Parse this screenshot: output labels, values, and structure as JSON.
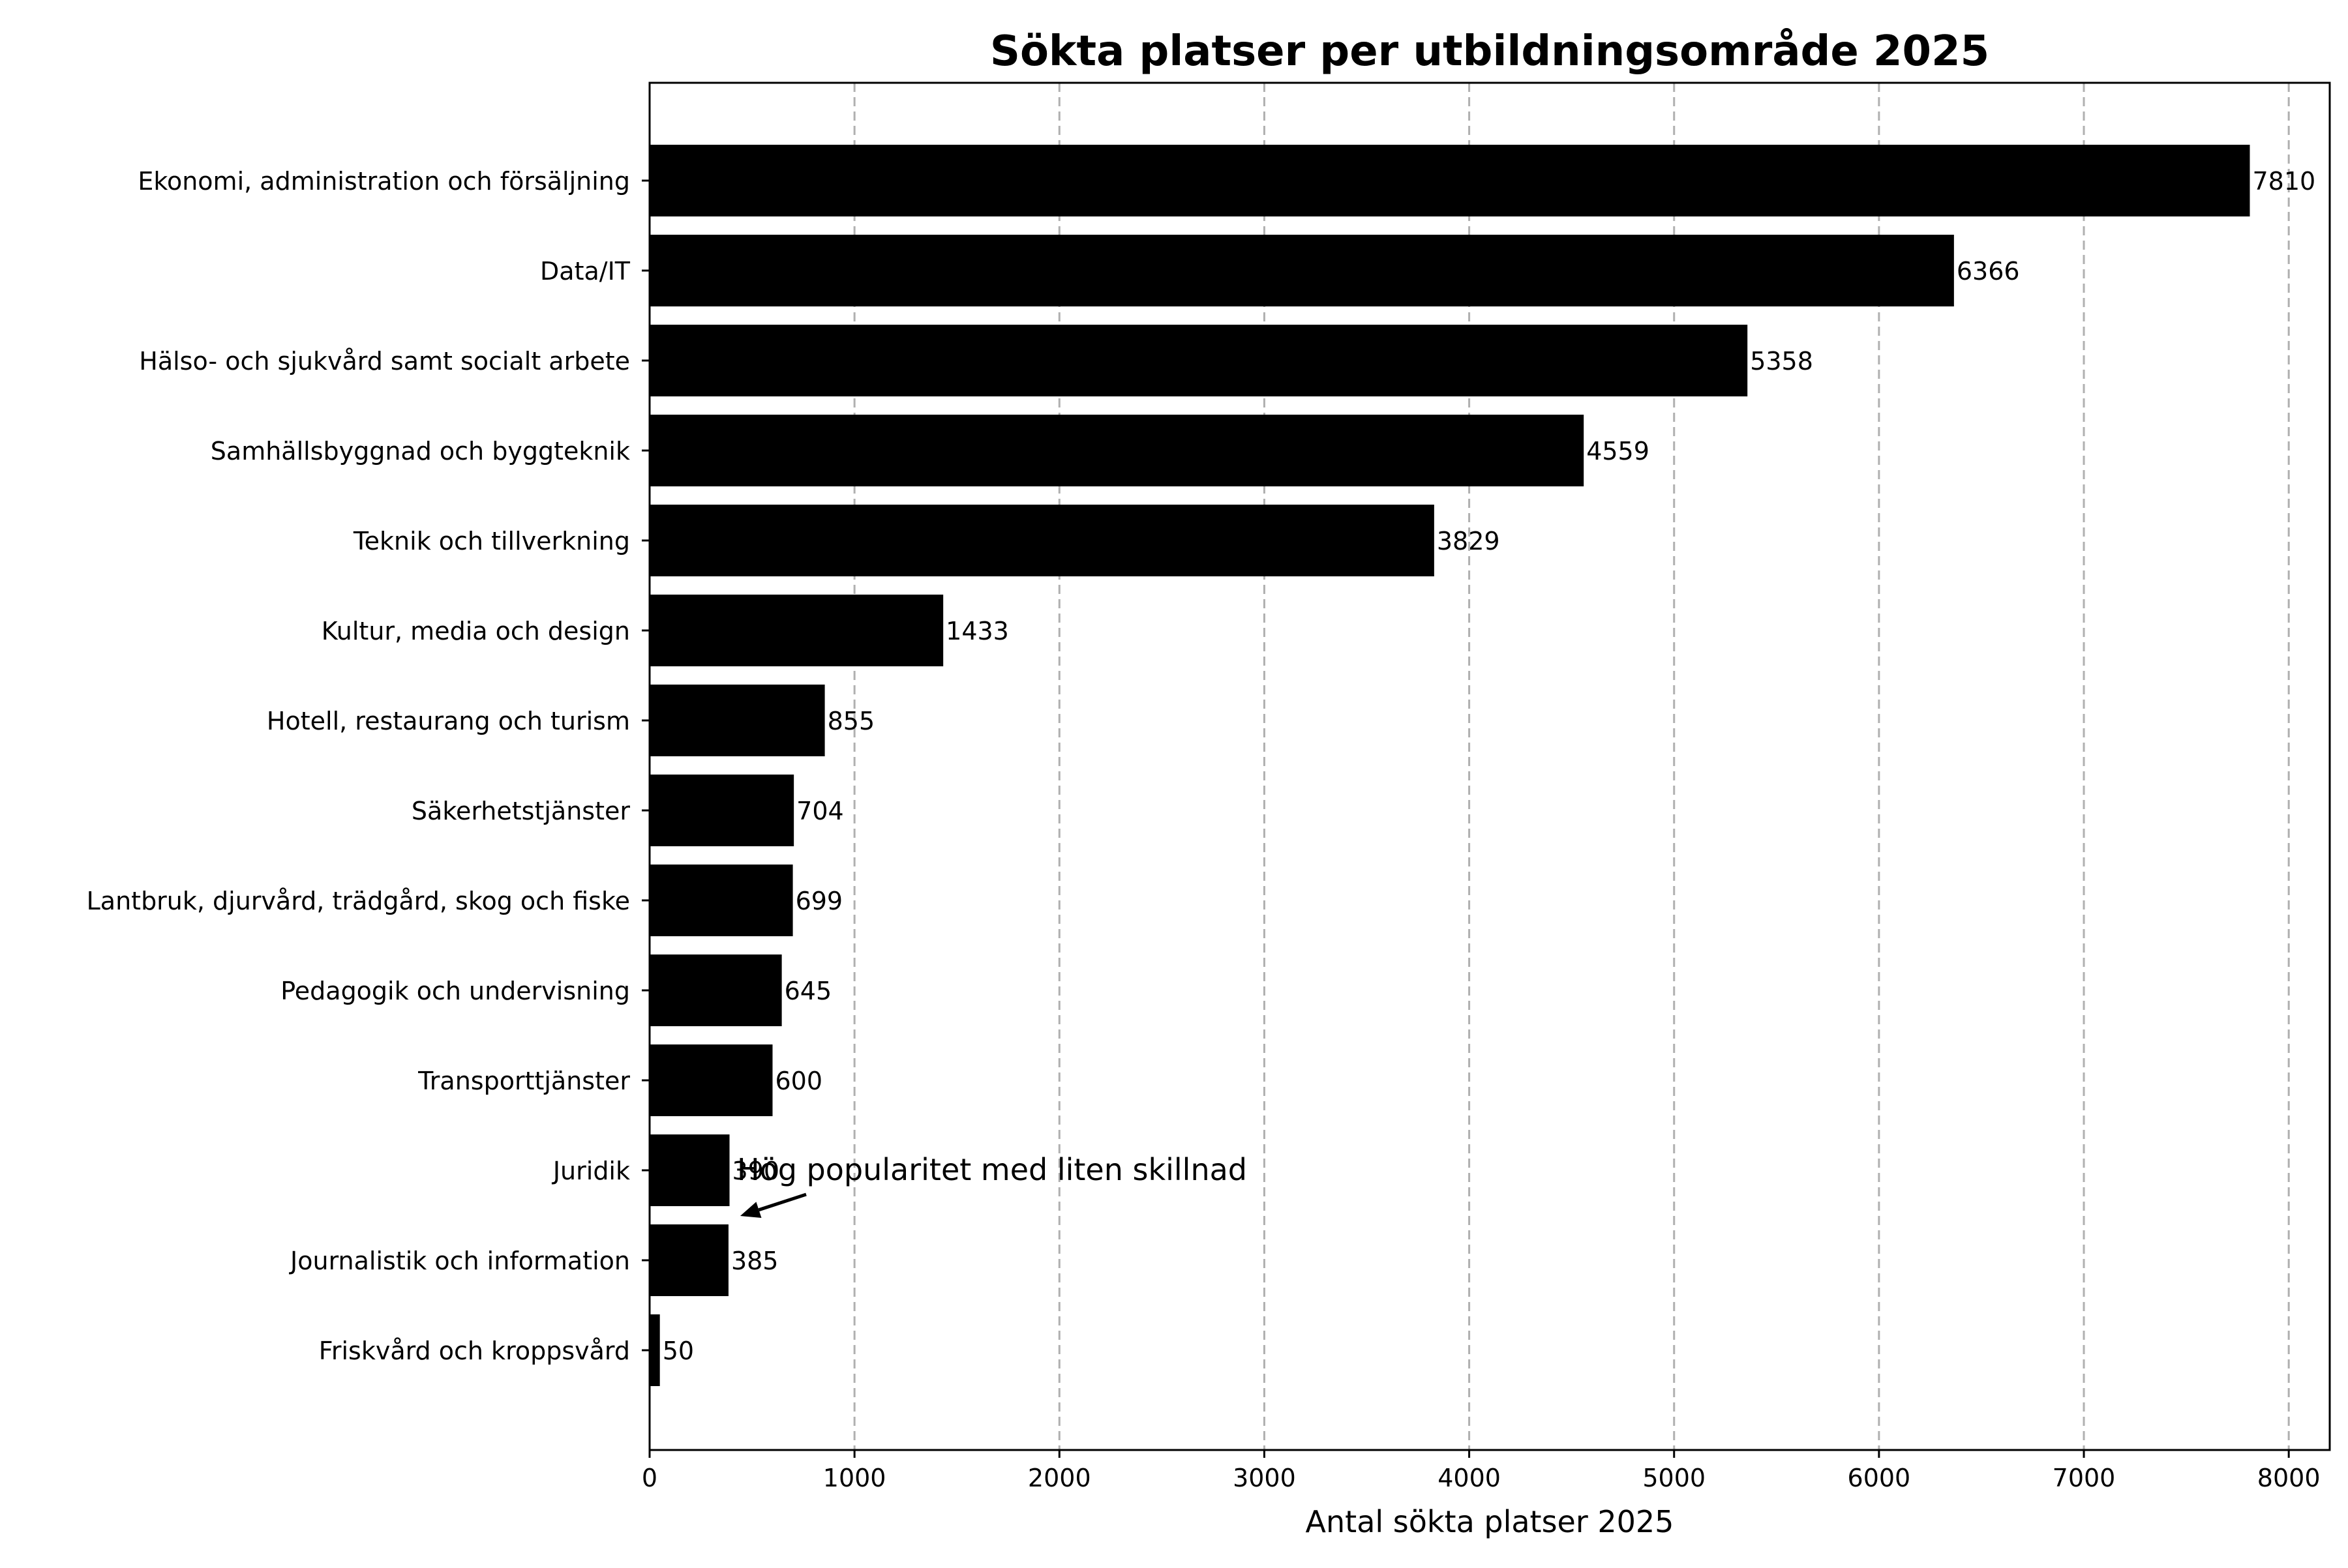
{
  "chart_data": {
    "type": "bar",
    "orientation": "horizontal",
    "title": "Sökta platser per utbildningsområde 2025",
    "xlabel": "Antal sökta platser 2025",
    "ylabel": "",
    "xlim": [
      0,
      8200
    ],
    "x_ticks": [
      0,
      1000,
      2000,
      3000,
      4000,
      5000,
      6000,
      7000,
      8000
    ],
    "grid": "x-axis dashed",
    "bar_color": "#000000",
    "categories": [
      "Ekonomi, administration och försäljning",
      "Data/IT",
      "Hälso- och sjukvård samt socialt arbete",
      "Samhällsbyggnad och byggteknik",
      "Teknik och tillverkning",
      "Kultur, media och design",
      "Hotell, restaurang och turism",
      "Säkerhetstjänster",
      "Lantbruk, djurvård, trädgård, skog och fiske",
      "Pedagogik och undervisning",
      "Transporttjänster",
      "Juridik",
      "Journalistik och information",
      "Friskvård och kroppsvård"
    ],
    "values": [
      7810,
      6366,
      5358,
      4559,
      3829,
      1433,
      855,
      704,
      699,
      645,
      600,
      390,
      385,
      50
    ],
    "annotation": {
      "text": "Hög popularitet med liten skillnad",
      "target_category": "Journalistik och information",
      "target_value": 385
    }
  }
}
